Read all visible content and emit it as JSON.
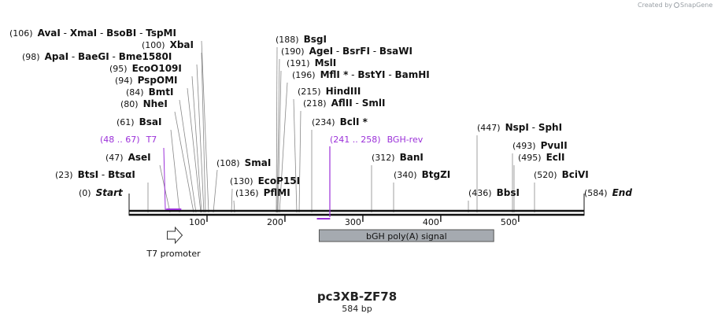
{
  "credit": {
    "prefix": "Created by",
    "brand": "SnapGene"
  },
  "title": "pc3XB-ZF78",
  "subtitle": "584 bp",
  "sequence_length": 584,
  "colors": {
    "primer": "#9b30d9",
    "feature_fill": "#a5aab0",
    "line": "#111111",
    "leader": "#888888"
  },
  "ticks": [
    {
      "label": "100",
      "bp": 100
    },
    {
      "label": "200",
      "bp": 200
    },
    {
      "label": "300",
      "bp": 300
    },
    {
      "label": "400",
      "bp": 400
    },
    {
      "label": "500",
      "bp": 500
    }
  ],
  "labels": [
    {
      "pos": "(106)",
      "parts": [
        {
          "t": "AvaI",
          "s": "enz"
        },
        {
          "t": " - ",
          "s": "sep"
        },
        {
          "t": "XmaI",
          "s": "enz"
        },
        {
          "t": " - ",
          "s": "sep"
        },
        {
          "t": "BsoBI",
          "s": "enz"
        },
        {
          "t": " - ",
          "s": "sep"
        },
        {
          "t": "TspMI",
          "s": "enz"
        }
      ]
    },
    {
      "pos": "(100)",
      "parts": [
        {
          "t": "XbaI",
          "s": "enz"
        }
      ]
    },
    {
      "pos": "(98)",
      "parts": [
        {
          "t": "ApaI",
          "s": "enz"
        },
        {
          "t": " - ",
          "s": "sep"
        },
        {
          "t": "BaeGI",
          "s": "enz"
        },
        {
          "t": " - ",
          "s": "sep"
        },
        {
          "t": "Bme1580I",
          "s": "enz"
        }
      ]
    },
    {
      "pos": "(95)",
      "parts": [
        {
          "t": "EcoO109I",
          "s": "enz"
        }
      ]
    },
    {
      "pos": "(94)",
      "parts": [
        {
          "t": "PspOMI",
          "s": "enz"
        }
      ]
    },
    {
      "pos": "(84)",
      "parts": [
        {
          "t": "BmtI",
          "s": "enz"
        }
      ]
    },
    {
      "pos": "(80)",
      "parts": [
        {
          "t": "NheI",
          "s": "enz"
        }
      ]
    },
    {
      "pos": "(61)",
      "parts": [
        {
          "t": "BsaI",
          "s": "enz"
        }
      ]
    },
    {
      "pos": "(48 .. 67)",
      "parts": [
        {
          "t": "T7",
          "s": "prim"
        }
      ]
    },
    {
      "pos": "(47)",
      "parts": [
        {
          "t": "AseI",
          "s": "enz"
        }
      ]
    },
    {
      "pos": "(23)",
      "parts": [
        {
          "t": "BtsI",
          "s": "enz"
        },
        {
          "t": " - ",
          "s": "sep"
        },
        {
          "t": "BtsαI",
          "s": "enz"
        }
      ]
    },
    {
      "pos": "(0)",
      "parts": [
        {
          "t": "Start",
          "s": "ital"
        }
      ]
    },
    {
      "pos": "(108)",
      "parts": [
        {
          "t": "SmaI",
          "s": "enz"
        }
      ]
    },
    {
      "pos": "(130)",
      "parts": [
        {
          "t": "EcoP15I",
          "s": "enz"
        }
      ]
    },
    {
      "pos": "(136)",
      "parts": [
        {
          "t": "PflMI",
          "s": "enz"
        }
      ]
    },
    {
      "pos": "(188)",
      "parts": [
        {
          "t": "BsgI",
          "s": "enz"
        }
      ]
    },
    {
      "pos": "(190)",
      "parts": [
        {
          "t": "AgeI",
          "s": "enz"
        },
        {
          "t": " - ",
          "s": "sep"
        },
        {
          "t": "BsrFI",
          "s": "enz"
        },
        {
          "t": " - ",
          "s": "sep"
        },
        {
          "t": "BsaWI",
          "s": "enz"
        }
      ]
    },
    {
      "pos": "(191)",
      "parts": [
        {
          "t": "MslI",
          "s": "enz"
        }
      ]
    },
    {
      "pos": "(196)",
      "parts": [
        {
          "t": "MflI *",
          "s": "enz"
        },
        {
          "t": " - ",
          "s": "sep"
        },
        {
          "t": "BstYI",
          "s": "enz"
        },
        {
          "t": " - ",
          "s": "sep"
        },
        {
          "t": "BamHI",
          "s": "enz"
        }
      ]
    },
    {
      "pos": "(215)",
      "parts": [
        {
          "t": "HindIII",
          "s": "enz"
        }
      ]
    },
    {
      "pos": "(218)",
      "parts": [
        {
          "t": "AflII",
          "s": "enz"
        },
        {
          "t": " - ",
          "s": "sep"
        },
        {
          "t": "SmlI",
          "s": "enz"
        }
      ]
    },
    {
      "pos": "(234)",
      "parts": [
        {
          "t": "BclI *",
          "s": "enz"
        }
      ]
    },
    {
      "pos": "(241 .. 258)",
      "parts": [
        {
          "t": "BGH-rev",
          "s": "prim"
        }
      ]
    },
    {
      "pos": "(312)",
      "parts": [
        {
          "t": "BanI",
          "s": "enz"
        }
      ]
    },
    {
      "pos": "(340)",
      "parts": [
        {
          "t": "BtgZI",
          "s": "enz"
        }
      ]
    },
    {
      "pos": "(447)",
      "parts": [
        {
          "t": "NspI",
          "s": "enz"
        },
        {
          "t": " - ",
          "s": "sep"
        },
        {
          "t": "SphI",
          "s": "enz"
        }
      ]
    },
    {
      "pos": "(493)",
      "parts": [
        {
          "t": "PvuII",
          "s": "enz"
        }
      ]
    },
    {
      "pos": "(495)",
      "parts": [
        {
          "t": "EclI",
          "s": "enz"
        }
      ]
    },
    {
      "pos": "(436)",
      "parts": [
        {
          "t": "BbsI",
          "s": "enz"
        }
      ]
    },
    {
      "pos": "(520)",
      "parts": [
        {
          "t": "BciVI",
          "s": "enz"
        }
      ]
    },
    {
      "pos": "(584)",
      "parts": [
        {
          "t": "End",
          "s": "ital"
        }
      ]
    }
  ],
  "features": [
    {
      "name": "T7 promoter",
      "start": 48,
      "end": 66,
      "type": "promoter"
    },
    {
      "name": "bGH poly(A) signal",
      "start": 244,
      "end": 468,
      "type": "polyA"
    }
  ],
  "primers": [
    {
      "name": "T7",
      "start": 48,
      "end": 67
    },
    {
      "name": "BGH-rev",
      "start": 241,
      "end": 258
    }
  ]
}
